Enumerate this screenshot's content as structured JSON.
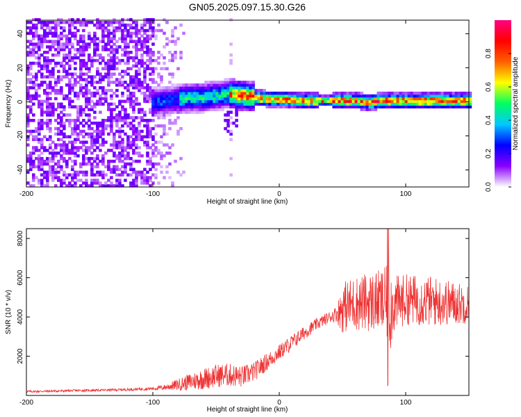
{
  "title": "GN05.2025.097.15.30.G26",
  "chart_data": [
    {
      "type": "heatmap",
      "xlabel": "Height of straight line (km)",
      "ylabel": "Frequency (Hz)",
      "xlim": [
        -200,
        150
      ],
      "ylim": [
        -50,
        48
      ],
      "xticks": [
        "-200",
        "-100",
        "0",
        "100"
      ],
      "xtick_values": [
        -200,
        -100,
        0,
        100
      ],
      "yticks": [
        "-40",
        "-20",
        "0",
        "20",
        "40"
      ],
      "ytick_values": [
        -40,
        -20,
        0,
        20,
        40
      ],
      "colorbar": {
        "label": "Normalized spectral amplitude",
        "range": [
          0,
          1
        ],
        "ticks": [
          "0.0",
          "0.2",
          "0.4",
          "0.6",
          "0.8"
        ],
        "tick_values": [
          0.0,
          0.2,
          0.4,
          0.6,
          0.8
        ],
        "colormap": [
          "#ffffff",
          "#8a00ff",
          "#0000ff",
          "#00c8ff",
          "#00ff60",
          "#ffff00",
          "#ff6000",
          "#ff0000",
          "#ff0080"
        ]
      },
      "ridge": {
        "height_km": [
          -100,
          -90,
          -80,
          -70,
          -60,
          -50,
          -40,
          -30,
          -20,
          -10,
          0,
          20,
          40,
          60,
          70,
          80,
          100,
          150
        ],
        "frequency_hz": [
          -1,
          0,
          1,
          2,
          2,
          3,
          4,
          3,
          2,
          1,
          1,
          0,
          0,
          0,
          -1,
          0,
          0,
          0
        ]
      },
      "noise_region_km": [
        -200,
        -80
      ],
      "grid": false
    },
    {
      "type": "line",
      "xlabel": "Height of straight line (km)",
      "ylabel": "SNR (10 * v/v)",
      "xlim": [
        -200,
        150
      ],
      "ylim": [
        0,
        8500
      ],
      "xticks": [
        "-200",
        "-100",
        "0",
        "100"
      ],
      "xtick_values": [
        -200,
        -100,
        0,
        100
      ],
      "yticks": [
        "2000",
        "4000",
        "6000",
        "8000"
      ],
      "ytick_values": [
        2000,
        4000,
        6000,
        8000
      ],
      "color": "#ee3333",
      "series": [
        {
          "x": [
            -200,
            -180,
            -160,
            -140,
            -120,
            -100,
            -90,
            -80,
            -70,
            -60,
            -50,
            -40,
            -30,
            -20,
            -10,
            0,
            10,
            20,
            30,
            40,
            45,
            48,
            50,
            60,
            70,
            80,
            85,
            88,
            90,
            100,
            110,
            120,
            130,
            140,
            150
          ],
          "y": [
            200,
            220,
            250,
            270,
            300,
            350,
            420,
            550,
            700,
            850,
            1000,
            1050,
            950,
            1200,
            1700,
            2200,
            2700,
            3200,
            3650,
            4000,
            4150,
            4300,
            4500,
            4700,
            4750,
            4800,
            4700,
            4500,
            4600,
            4900,
            4850,
            4800,
            4750,
            4700,
            4650
          ],
          "spread": [
            60,
            60,
            60,
            60,
            70,
            80,
            150,
            300,
            450,
            550,
            600,
            600,
            550,
            500,
            450,
            400,
            400,
            350,
            300,
            300,
            400,
            900,
            1300,
            1400,
            1500,
            1600,
            1900,
            2300,
            1500,
            1300,
            1300,
            1300,
            1200,
            1100,
            1000
          ]
        }
      ],
      "grid": false
    }
  ]
}
